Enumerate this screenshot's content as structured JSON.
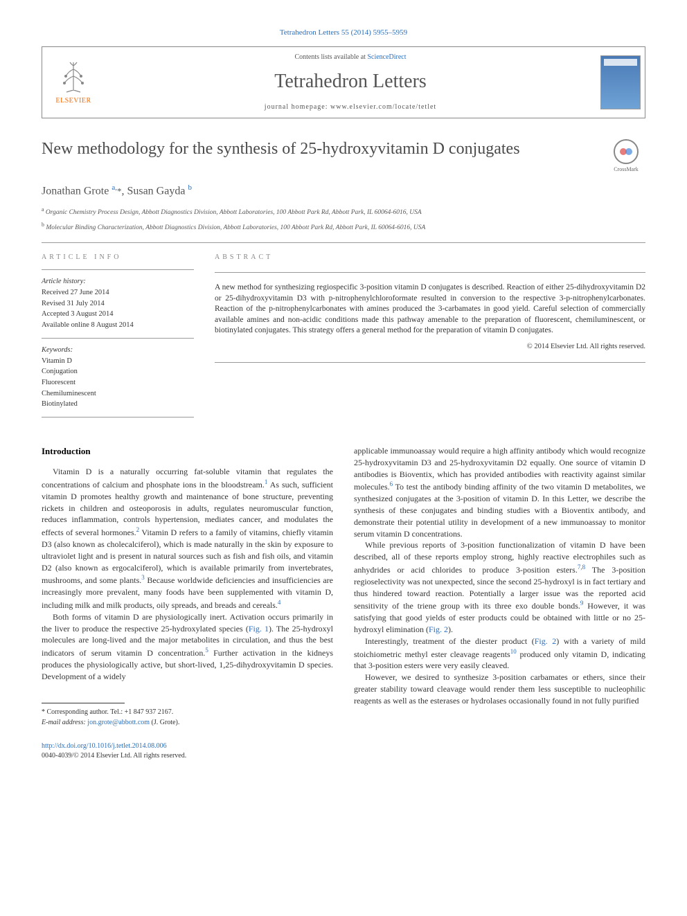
{
  "biblio": "Tetrahedron Letters 55 (2014) 5955–5959",
  "header": {
    "publisher": "ELSEVIER",
    "contents_prefix": "Contents lists available at ",
    "contents_link": "ScienceDirect",
    "journal": "Tetrahedron Letters",
    "homepage_prefix": "journal homepage: ",
    "homepage_url": "www.elsevier.com/locate/tetlet"
  },
  "title": "New methodology for the synthesis of 25-hydroxyvitamin D conjugates",
  "crossmark": "CrossMark",
  "authors_html": "Jonathan Grote <sup>a,</sup><span class='asterisk'>*</span>, Susan Gayda <sup>b</sup>",
  "affiliations": [
    {
      "sup": "a",
      "text": "Organic Chemistry Process Design, Abbott Diagnostics Division, Abbott Laboratories, 100 Abbott Park Rd, Abbott Park, IL 60064-6016, USA"
    },
    {
      "sup": "b",
      "text": "Molecular Binding Characterization, Abbott Diagnostics Division, Abbott Laboratories, 100 Abbott Park Rd, Abbott Park, IL 60064-6016, USA"
    }
  ],
  "info_label": "ARTICLE INFO",
  "abstract_label": "ABSTRACT",
  "history": {
    "heading": "Article history:",
    "lines": [
      "Received 27 June 2014",
      "Revised 31 July 2014",
      "Accepted 3 August 2014",
      "Available online 8 August 2014"
    ]
  },
  "keywords": {
    "heading": "Keywords:",
    "items": [
      "Vitamin D",
      "Conjugation",
      "Fluorescent",
      "Chemiluminescent",
      "Biotinylated"
    ]
  },
  "abstract": "A new method for synthesizing regiospecific 3-position vitamin D conjugates is described. Reaction of either 25-dihydroxyvitamin D2 or 25-dihydroxyvitamin D3 with p-nitrophenylchloroformate resulted in conversion to the respective 3-p-nitrophenylcarbonates. Reaction of the p-nitrophenylcarbonates with amines produced the 3-carbamates in good yield. Careful selection of commercially available amines and non-acidic conditions made this pathway amenable to the preparation of fluorescent, chemiluminescent, or biotinylated conjugates. This strategy offers a general method for the preparation of vitamin D conjugates.",
  "copyright": "© 2014 Elsevier Ltd. All rights reserved.",
  "intro_heading": "Introduction",
  "left_paragraphs": [
    "Vitamin D is a naturally occurring fat-soluble vitamin that regulates the concentrations of calcium and phosphate ions in the bloodstream.<sup>1</sup> As such, sufficient vitamin D promotes healthy growth and maintenance of bone structure, preventing rickets in children and osteoporosis in adults, regulates neuromuscular function, reduces inflammation, controls hypertension, mediates cancer, and modulates the effects of several hormones.<sup>2</sup> Vitamin D refers to a family of vitamins, chiefly vitamin D3 (also known as cholecalciferol), which is made naturally in the skin by exposure to ultraviolet light and is present in natural sources such as fish and fish oils, and vitamin D2 (also known as ergocalciferol), which is available primarily from invertebrates, mushrooms, and some plants.<sup>3</sup> Because worldwide deficiencies and insufficiencies are increasingly more prevalent, many foods have been supplemented with vitamin D, including milk and milk products, oily spreads, and breads and cereals.<sup>4</sup>",
    "Both forms of vitamin D are physiologically inert. Activation occurs primarily in the liver to produce the respective 25-hydroxylated species (<a>Fig. 1</a>). The 25-hydroxyl molecules are long-lived and the major metabolites in circulation, and thus the best indicators of serum vitamin D concentration.<sup>5</sup> Further activation in the kidneys produces the physiologically active, but short-lived, 1,25-dihydroxyvitamin D species. Development of a widely"
  ],
  "right_paragraphs": [
    "applicable immunoassay would require a high affinity antibody which would recognize 25-hydroxyvitamin D3 and 25-hydroxyvitamin D2 equally. One source of vitamin D antibodies is Bioventix, which has provided antibodies with reactivity against similar molecules.<sup>6</sup> To test the antibody binding affinity of the two vitamin D metabolites, we synthesized conjugates at the 3-position of vitamin D. In this Letter, we describe the synthesis of these conjugates and binding studies with a Bioventix antibody, and demonstrate their potential utility in development of a new immunoassay to monitor serum vitamin D concentrations.",
    "While previous reports of 3-position functionalization of vitamin D have been described, all of these reports employ strong, highly reactive electrophiles such as anhydrides or acid chlorides to produce 3-position esters.<sup>7,8</sup> The 3-position regioselectivity was not unexpected, since the second 25-hydroxyl is in fact tertiary and thus hindered toward reaction. Potentially a larger issue was the reported acid sensitivity of the triene group with its three exo double bonds.<sup>9</sup> However, it was satisfying that good yields of ester products could be obtained with little or no 25-hydroxyl elimination (<a>Fig. 2</a>).",
    "Interestingly, treatment of the diester product (<a>Fig. 2</a>) with a variety of mild stoichiometric methyl ester cleavage reagents<sup>10</sup> produced only vitamin D, indicating that 3-position esters were very easily cleaved.",
    "However, we desired to synthesize 3-position carbamates or ethers, since their greater stability toward cleavage would render them less susceptible to nucleophilic reagents as well as the esterases or hydrolases occasionally found in not fully purified"
  ],
  "corresponding": {
    "label": "* Corresponding author. Tel.: +1 847 937 2167.",
    "email_label": "E-mail address:",
    "email": "jon.grote@abbott.com",
    "name": "(J. Grote)."
  },
  "footer": {
    "doi": "http://dx.doi.org/10.1016/j.tetlet.2014.08.006",
    "issn_copy": "0040-4039/© 2014 Elsevier Ltd. All rights reserved."
  },
  "colors": {
    "link": "#2a6ebb",
    "publisher": "#ff6a00",
    "text": "#333333",
    "heading": "#4a4a4a"
  }
}
